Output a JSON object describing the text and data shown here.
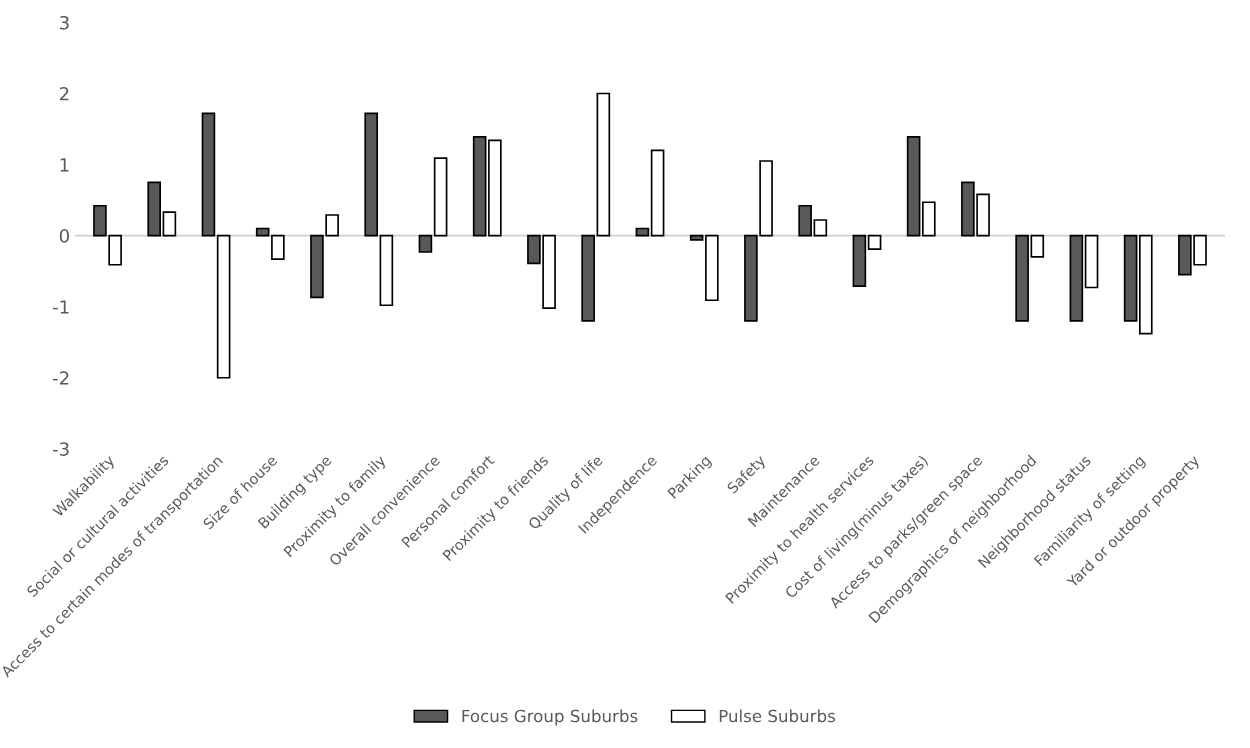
{
  "chart_data": {
    "type": "bar",
    "categories": [
      "Walkability",
      "Social or cultural activities",
      "Access to certain modes of transportation",
      "Size of house",
      "Building type",
      "Proximity to family",
      "Overall convenience",
      "Personal comfort",
      "Proximity to friends",
      "Quality of life",
      "Independence",
      "Parking",
      "Safety",
      "Maintenance",
      "Proximity to health services",
      "Cost of living(minus taxes)",
      "Access to parks/green space",
      "Demographics of neighborhood",
      "Neighborhood status",
      "Familiarity of setting",
      "Yard or outdoor property"
    ],
    "series": [
      {
        "name": "Focus Group Suburbs",
        "color": "#595959",
        "values": [
          0.42,
          0.75,
          1.72,
          0.1,
          -0.87,
          1.72,
          -0.23,
          1.39,
          -0.39,
          -1.2,
          0.1,
          -0.06,
          -1.2,
          0.42,
          -0.71,
          1.39,
          0.75,
          -1.2,
          -1.2,
          -1.2,
          -0.55
        ]
      },
      {
        "name": "Pulse Suburbs",
        "color": "#ffffff",
        "values": [
          -0.41,
          0.33,
          -2.0,
          -0.33,
          0.29,
          -0.98,
          1.09,
          1.34,
          -1.02,
          2.0,
          1.2,
          -0.91,
          1.05,
          0.22,
          -0.19,
          0.47,
          0.58,
          -0.3,
          -0.73,
          -1.38,
          -0.41
        ]
      }
    ],
    "ref_lines": [
      {
        "axis": "y",
        "value": 0,
        "color": "#d0d0d0"
      }
    ],
    "ylim": [
      -3,
      3
    ],
    "yticks": [
      -3,
      -2,
      -1,
      0,
      1,
      2,
      3
    ],
    "grid": false,
    "legend": "bottom"
  }
}
